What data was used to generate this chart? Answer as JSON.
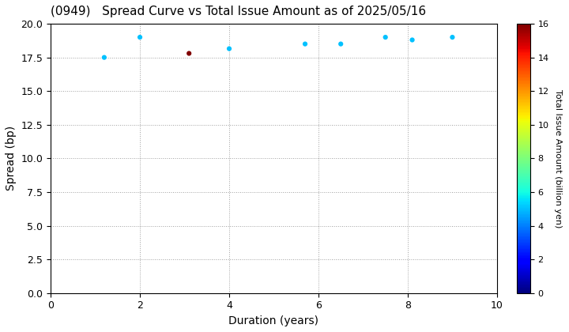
{
  "title": "(0949)   Spread Curve vs Total Issue Amount as of 2025/05/16",
  "xlabel": "Duration (years)",
  "ylabel": "Spread (bp)",
  "colorbar_label": "Total Issue Amount (billion yen)",
  "xlim": [
    0,
    10
  ],
  "ylim": [
    0.0,
    20.0
  ],
  "yticks": [
    0.0,
    2.5,
    5.0,
    7.5,
    10.0,
    12.5,
    15.0,
    17.5,
    20.0
  ],
  "xticks": [
    0,
    2,
    4,
    6,
    8,
    10
  ],
  "colorbar_range": [
    0,
    16
  ],
  "colorbar_ticks": [
    0,
    2,
    4,
    6,
    8,
    10,
    12,
    14,
    16
  ],
  "points": [
    {
      "duration": 1.2,
      "spread": 17.5,
      "amount": 5.0
    },
    {
      "duration": 2.0,
      "spread": 19.0,
      "amount": 5.0
    },
    {
      "duration": 3.1,
      "spread": 17.8,
      "amount": 16.0
    },
    {
      "duration": 4.0,
      "spread": 18.15,
      "amount": 5.0
    },
    {
      "duration": 5.7,
      "spread": 18.5,
      "amount": 5.0
    },
    {
      "duration": 6.5,
      "spread": 18.5,
      "amount": 5.0
    },
    {
      "duration": 7.5,
      "spread": 19.0,
      "amount": 5.0
    },
    {
      "duration": 8.1,
      "spread": 18.8,
      "amount": 5.0
    },
    {
      "duration": 9.0,
      "spread": 19.0,
      "amount": 5.0
    }
  ],
  "background_color": "#ffffff",
  "grid_color": "#888888",
  "marker_size": 20,
  "title_fontsize": 11,
  "axis_fontsize": 10,
  "tick_fontsize": 9,
  "cbar_fontsize": 8
}
